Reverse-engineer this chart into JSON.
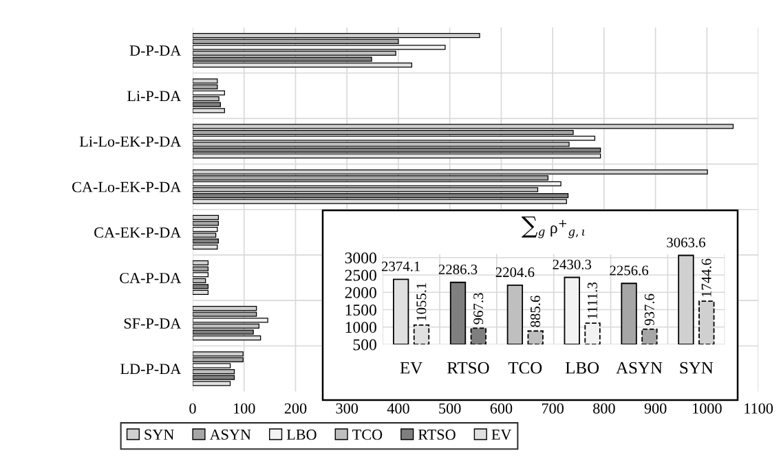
{
  "chart_data": [
    {
      "type": "bar",
      "orientation": "horizontal",
      "categories": [
        "D-P-DA",
        "Li-P-DA",
        "Li-Lo-EK-P-DA",
        "CA-Lo-EK-P-DA",
        "CA-EK-P-DA",
        "CA-P-DA",
        "SF-P-DA",
        "LD-P-DA"
      ],
      "series": [
        {
          "name": "SYN",
          "color": "#d0d0d0",
          "values": [
            558,
            48,
            1051,
            1001,
            50,
            30,
            124,
            98
          ]
        },
        {
          "name": "ASYN",
          "color": "#a6a6a6",
          "values": [
            400,
            48,
            740,
            691,
            50,
            30,
            124,
            98
          ]
        },
        {
          "name": "LBO",
          "color": "#f2f2f2",
          "values": [
            491,
            62,
            782,
            716,
            48,
            30,
            146,
            73
          ]
        },
        {
          "name": "TCO",
          "color": "#bfbfbf",
          "values": [
            395,
            51,
            732,
            671,
            45,
            25,
            129,
            81
          ]
        },
        {
          "name": "RTSO",
          "color": "#7f7f7f",
          "values": [
            348,
            54,
            793,
            730,
            50,
            30,
            118,
            81
          ]
        },
        {
          "name": "EV",
          "color": "#e0e0e0",
          "values": [
            426,
            62,
            793,
            727,
            48,
            30,
            132,
            73
          ]
        }
      ],
      "xlim": [
        0,
        1100
      ],
      "xticks": [
        0,
        100,
        200,
        300,
        400,
        500,
        600,
        700,
        800,
        900,
        1000,
        1100
      ],
      "grid": true,
      "legend": "bottom"
    },
    {
      "type": "bar",
      "title": "∑$_{g}$ ρ$^{+}$$_{g,ι}$",
      "categories": [
        "EV",
        "RTSO",
        "TCO",
        "LBO",
        "ASYN",
        "SYN"
      ],
      "series": [
        {
          "colors": [
            "#e0e0e0",
            "#7f7f7f",
            "#bfbfbf",
            "#f2f2f2",
            "#a6a6a6",
            "#d0d0d0"
          ],
          "values": [
            2374.1,
            2286.3,
            2204.6,
            2430.3,
            2256.6,
            3063.6
          ]
        },
        {
          "colors": [
            "#e0e0e0",
            "#7f7f7f",
            "#bfbfbf",
            "#f2f2f2",
            "#a6a6a6",
            "#d0d0d0"
          ],
          "line_style": "dashed",
          "values": [
            1055.1,
            967.3,
            885.6,
            1111.3,
            937.6,
            1744.6
          ]
        }
      ],
      "ylim": [
        500,
        3100
      ],
      "yticks": [
        500,
        1000,
        1500,
        2000,
        2500,
        3000
      ],
      "grid": true,
      "data_labels": true
    }
  ]
}
